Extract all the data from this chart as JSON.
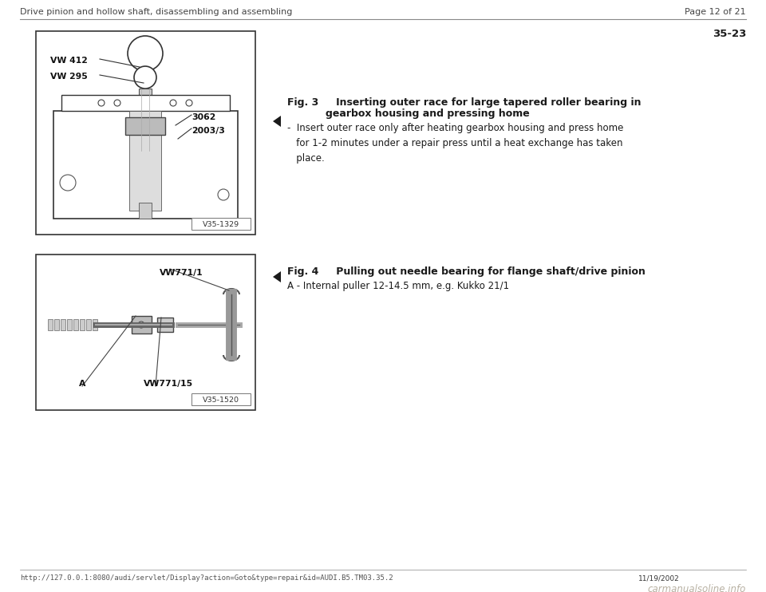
{
  "bg_color": "#ffffff",
  "header_left": "Drive pinion and hollow shaft, disassembling and assembling",
  "header_right": "Page 12 of 21",
  "page_number": "35-23",
  "fig3_title_line1": "Fig. 3     Inserting outer race for large tapered roller bearing in",
  "fig3_title_line2": "                gearbox housing and pressing home",
  "fig3_bullet": "-  Insert outer race only after heating gearbox housing and press home\n   for 1-2 minutes under a repair press until a heat exchange has taken\n   place.",
  "fig4_title": "Fig. 4     Pulling out needle bearing for flange shaft/drive pinion",
  "fig4_text": "A - Internal puller 12-14.5 mm, e.g. Kukko 21/1",
  "img1_label": "V35-1329",
  "img2_label": "V35-1520",
  "footer_url": "http://127.0.0.1:8080/audi/servlet/Display?action=Goto&type=repair&id=AUDI.B5.TM03.35.2",
  "footer_date": "11/19/2002",
  "footer_watermark": "carmanualsoline.info",
  "font_color": "#1a1a1a",
  "header_fontsize": 8.0,
  "body_fontsize": 8.5,
  "fig_title_fontsize": 9.0,
  "page_num_fontsize": 9.5,
  "footer_fontsize": 6.5
}
